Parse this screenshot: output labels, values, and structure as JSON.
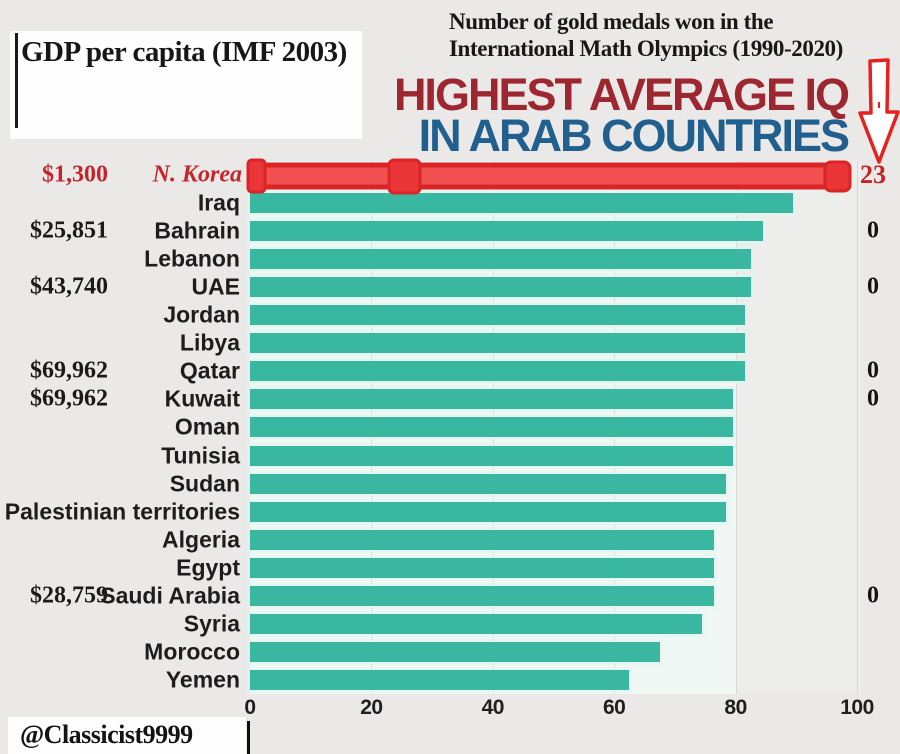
{
  "annotations": {
    "gdp_box_title": "GDP per capita (IMF 2003)",
    "medals_note_line1": "Number of gold medals won in the",
    "medals_note_line2": "International Math Olympics (1990-2020)",
    "watermark": "@Classicist9999"
  },
  "title": {
    "line1": "HIGHEST AVERAGE IQ",
    "line2": "IN ARAB COUNTRIES",
    "line1_color": "#9c2731",
    "line2_color": "#21608e"
  },
  "colors": {
    "background": "#eae9e7",
    "bar_teal": "#3ab7a0",
    "highlight_red_fill": "#f25050",
    "highlight_red_stroke": "#da2426",
    "red_text": "#c5242b",
    "gridline": "#d7d8d5"
  },
  "chart_data": {
    "type": "bar",
    "orientation": "horizontal",
    "title": "HIGHEST AVERAGE IQ IN ARAB COUNTRIES",
    "xlabel": "",
    "ylabel": "",
    "xlim": [
      0,
      100
    ],
    "x_ticks": [
      0,
      20,
      40,
      60,
      80,
      100
    ],
    "grid": true,
    "rows": [
      {
        "country": "N. Korea",
        "iq": 98,
        "gdp": "$1,300",
        "medals": "23",
        "highlight": true
      },
      {
        "country": "Iraq",
        "iq": 89.5
      },
      {
        "country": "Bahrain",
        "iq": 84.5,
        "gdp": "$25,851",
        "medals": "0"
      },
      {
        "country": "Lebanon",
        "iq": 82.5
      },
      {
        "country": "UAE",
        "iq": 82.5,
        "gdp": "$43,740",
        "medals": "0"
      },
      {
        "country": "Jordan",
        "iq": 81.5
      },
      {
        "country": "Libya",
        "iq": 81.5
      },
      {
        "country": "Qatar",
        "iq": 81.5,
        "gdp": "$69,962",
        "medals": "0"
      },
      {
        "country": "Kuwait",
        "iq": 79.5,
        "gdp": "$69,962",
        "medals": "0"
      },
      {
        "country": "Oman",
        "iq": 79.5
      },
      {
        "country": "Tunisia",
        "iq": 79.5
      },
      {
        "country": "Sudan",
        "iq": 78.5
      },
      {
        "country": "Palestinian territories",
        "iq": 78.5
      },
      {
        "country": "Algeria",
        "iq": 76.5
      },
      {
        "country": "Egypt",
        "iq": 76.5
      },
      {
        "country": "Saudi Arabia",
        "iq": 76.5,
        "gdp": "$28,759",
        "medals": "0"
      },
      {
        "country": "Syria",
        "iq": 74.5
      },
      {
        "country": "Morocco",
        "iq": 67.5
      },
      {
        "country": "Yemen",
        "iq": 62.5
      }
    ]
  }
}
